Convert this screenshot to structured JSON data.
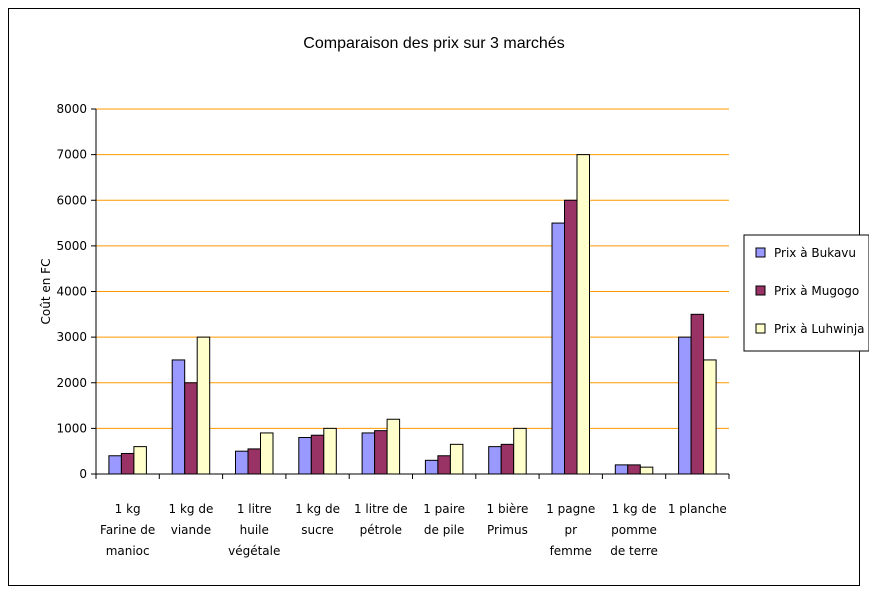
{
  "chart_data": {
    "type": "bar",
    "title": "Comparaison des prix sur 3 marchés",
    "xlabel": "",
    "ylabel": "Coût en FC",
    "ylim": [
      0,
      8000
    ],
    "yticks": [
      0,
      1000,
      2000,
      3000,
      4000,
      5000,
      6000,
      7000,
      8000
    ],
    "grid": true,
    "legend_position": "right",
    "categories": [
      [
        "1 kg",
        "Farine de",
        "manioc"
      ],
      [
        "1 kg de",
        "viande"
      ],
      [
        "1 litre",
        "huile",
        "végétale"
      ],
      [
        "1 kg de",
        "sucre"
      ],
      [
        "1 litre de",
        "pétrole"
      ],
      [
        "1 paire",
        "de pile"
      ],
      [
        "1 bière",
        "Primus"
      ],
      [
        "1 pagne",
        "pr",
        "femme"
      ],
      [
        "1 kg de",
        "pomme",
        "de terre"
      ],
      [
        "1 planche"
      ]
    ],
    "series": [
      {
        "name": "Prix à Bukavu",
        "color": "#9999ff",
        "values": [
          400,
          2500,
          500,
          800,
          900,
          300,
          600,
          5500,
          200,
          3000
        ]
      },
      {
        "name": "Prix à Mugogo",
        "color": "#993366",
        "values": [
          450,
          2000,
          550,
          850,
          950,
          400,
          650,
          6000,
          200,
          3500
        ]
      },
      {
        "name": "Prix à Luhwinja",
        "color": "#ffffcc",
        "values": [
          600,
          3000,
          900,
          1000,
          1200,
          650,
          1000,
          7000,
          150,
          2500
        ]
      }
    ],
    "colors": {
      "gridline": "#ff9900",
      "axis": "#000000",
      "bar_outline": "#000000"
    }
  }
}
